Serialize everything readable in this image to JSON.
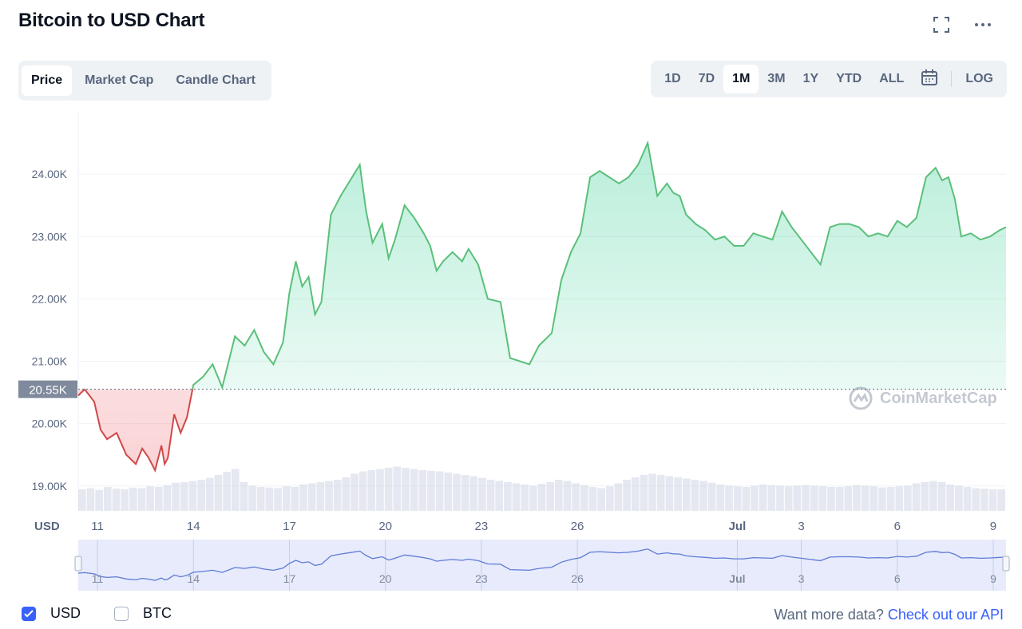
{
  "title": "Bitcoin to USD Chart",
  "header_icons": [
    "fullscreen-icon",
    "more-icon"
  ],
  "tabs": [
    {
      "label": "Price",
      "active": true
    },
    {
      "label": "Market Cap",
      "active": false
    },
    {
      "label": "Candle Chart",
      "active": false
    }
  ],
  "ranges": [
    {
      "label": "1D",
      "active": false
    },
    {
      "label": "7D",
      "active": false
    },
    {
      "label": "1M",
      "active": true
    },
    {
      "label": "3M",
      "active": false
    },
    {
      "label": "1Y",
      "active": false
    },
    {
      "label": "YTD",
      "active": false
    },
    {
      "label": "ALL",
      "active": false
    }
  ],
  "log_label": "LOG",
  "watermark": "CoinMarketCap",
  "legend": [
    {
      "label": "USD",
      "checked": true
    },
    {
      "label": "BTC",
      "checked": false
    }
  ],
  "api": {
    "prefix": "Want more data?",
    "link": "Check out our API"
  },
  "colors": {
    "up": "#16c784",
    "up_line": "#5bbf7a",
    "down_line": "#d04848",
    "navigator": "#dde3fb",
    "navigator_line": "#5f7bd4",
    "volume": "#cfd6e4"
  },
  "chart_data": {
    "type": "area",
    "currency_label": "USD",
    "ylim": [
      18600,
      25000
    ],
    "yticks": [
      19000,
      20000,
      21000,
      22000,
      23000,
      24000
    ],
    "ytick_labels": [
      "19.00K",
      "20.00K",
      "21.00K",
      "22.00K",
      "23.00K",
      "24.00K"
    ],
    "baseline": 20550,
    "baseline_label": "20.55K",
    "x_tick_labels": [
      "11",
      "14",
      "17",
      "20",
      "23",
      "26",
      "Jul",
      "3",
      "6",
      "9"
    ],
    "x_tick_days": [
      11,
      14,
      17,
      20,
      23,
      26,
      31,
      33,
      36,
      39
    ],
    "x_range_days": [
      10.4,
      39.4
    ],
    "series": [
      {
        "x": [
          10.4,
          10.6,
          10.9,
          11.1,
          11.3,
          11.6,
          11.9,
          12.2,
          12.4,
          12.6,
          12.8,
          13.0,
          13.1,
          13.2,
          13.4,
          13.6,
          13.8,
          14.0,
          14.3,
          14.6,
          14.9,
          15.3,
          15.6,
          15.9,
          16.2,
          16.5,
          16.8,
          17.0,
          17.2,
          17.4,
          17.6,
          17.8,
          18.0,
          18.3,
          18.6,
          18.9,
          19.2,
          19.4,
          19.6,
          19.9,
          20.1,
          20.3,
          20.6,
          20.9,
          21.2,
          21.4,
          21.6,
          21.8,
          22.1,
          22.4,
          22.6,
          22.9,
          23.2,
          23.6,
          23.9,
          24.2,
          24.5,
          24.8,
          25.2,
          25.5,
          25.8,
          26.1,
          26.4,
          26.7,
          27.0,
          27.3,
          27.6,
          27.9,
          28.2,
          28.5,
          28.8,
          29.0,
          29.2,
          29.4,
          29.7,
          30.0,
          30.3,
          30.6,
          30.9,
          31.2,
          31.5,
          31.8,
          32.1,
          32.4,
          32.7,
          33.0,
          33.3,
          33.6,
          33.9,
          34.2,
          34.5,
          34.8,
          35.1,
          35.4,
          35.7,
          36.0,
          36.3,
          36.6,
          36.9,
          37.2,
          37.4,
          37.6,
          37.8,
          38.0,
          38.3,
          38.6,
          38.9,
          39.2,
          39.4
        ],
        "values": [
          20450,
          20550,
          20350,
          19900,
          19750,
          19850,
          19500,
          19350,
          19600,
          19450,
          19250,
          19650,
          19350,
          19450,
          20150,
          19850,
          20100,
          20620,
          20750,
          20950,
          20580,
          21400,
          21250,
          21500,
          21150,
          20950,
          21300,
          22100,
          22600,
          22200,
          22350,
          21750,
          21950,
          23350,
          23650,
          23900,
          24150,
          23400,
          22900,
          23200,
          22650,
          22950,
          23500,
          23300,
          23050,
          22850,
          22450,
          22600,
          22750,
          22600,
          22800,
          22550,
          22000,
          21950,
          21050,
          21000,
          20950,
          21250,
          21450,
          22300,
          22750,
          23050,
          23950,
          24050,
          23950,
          23850,
          23950,
          24150,
          24500,
          23650,
          23850,
          23700,
          23650,
          23350,
          23200,
          23100,
          22950,
          23000,
          22850,
          22850,
          23050,
          23000,
          22950,
          23400,
          23150,
          22950,
          22750,
          22550,
          23150,
          23200,
          23200,
          23150,
          23000,
          23050,
          23000,
          23250,
          23150,
          23300,
          23950,
          24100,
          23900,
          23950,
          23600,
          23000,
          23050,
          22950,
          23000,
          23100,
          23150
        ]
      }
    ],
    "volume": [
      36,
      38,
      35,
      40,
      37,
      36,
      39,
      38,
      41,
      40,
      43,
      47,
      48,
      50,
      52,
      55,
      60,
      65,
      70,
      48,
      42,
      40,
      39,
      38,
      41,
      40,
      44,
      46,
      48,
      50,
      52,
      56,
      62,
      66,
      68,
      70,
      72,
      74,
      72,
      70,
      68,
      67,
      66,
      64,
      62,
      60,
      58,
      55,
      52,
      50,
      48,
      46,
      44,
      42,
      45,
      48,
      52,
      50,
      46,
      43,
      40,
      38,
      41,
      46,
      52,
      56,
      60,
      62,
      60,
      58,
      56,
      54,
      52,
      50,
      47,
      44,
      42,
      41,
      40,
      42,
      44,
      43,
      42,
      41,
      42,
      43,
      42,
      41,
      40,
      40,
      41,
      43,
      42,
      41,
      39,
      40,
      41,
      42,
      46,
      48,
      50,
      48,
      44,
      42,
      40,
      38,
      37,
      36,
      36
    ],
    "volume_range": [
      0,
      100
    ],
    "navigator_x_tick_labels": [
      "11",
      "14",
      "17",
      "20",
      "23",
      "26",
      "Jul",
      "3",
      "6",
      "9"
    ]
  }
}
